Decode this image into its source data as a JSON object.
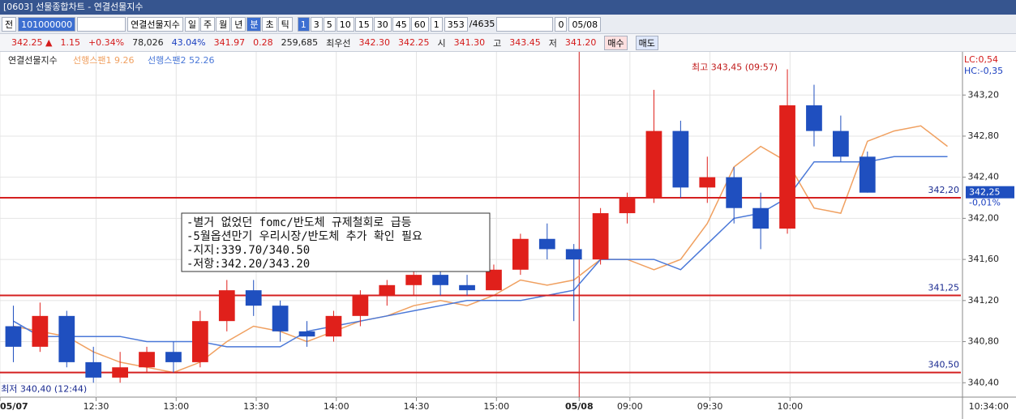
{
  "window": {
    "title": "[0603] 선물종합차트 - 연결선물지수"
  },
  "toolbar": {
    "first": "전",
    "code": "101000000",
    "symbol": "연결선물지수",
    "periods": [
      "일",
      "주",
      "월",
      "년",
      "분",
      "초",
      "틱"
    ],
    "intervals": [
      "1",
      "3",
      "5",
      "10",
      "15",
      "30",
      "45",
      "60"
    ],
    "count": "1",
    "position": "353",
    "total": "/4635",
    "check": "0",
    "date": "05/08"
  },
  "quote": {
    "price": "342.25 ▲",
    "change": "1.15",
    "rate": "+0.34%",
    "volume": "78,026",
    "ratio": "43.04%",
    "base": "341.97",
    "diff": "0.28",
    "open_interest": "259,685",
    "best_label": "최우선",
    "ask": "342.30",
    "bid": "342.25",
    "open_label": "시",
    "open": "341.30",
    "high_label": "고",
    "high": "343.45",
    "low_label": "저",
    "low": "341.20",
    "buy": "매수",
    "sell": "매도"
  },
  "chart_data": {
    "type": "candlestick",
    "label": "연결선물지수",
    "up_color": "#e0201b",
    "down_color": "#1f4fbf",
    "open": [
      340.95,
      340.75,
      341.05,
      340.6,
      340.45,
      340.55,
      340.7,
      340.6,
      341.0,
      341.3,
      341.15,
      340.9,
      340.85,
      341.05,
      341.25,
      341.35,
      341.45,
      341.35,
      341.3,
      341.5,
      341.8,
      341.7,
      341.6,
      342.05,
      342.2,
      342.85,
      342.3,
      342.4,
      342.1,
      341.9,
      343.1,
      342.85,
      342.6
    ],
    "high": [
      341.15,
      341.18,
      341.1,
      340.75,
      340.7,
      340.75,
      340.8,
      341.1,
      341.4,
      341.4,
      341.2,
      341.0,
      341.1,
      341.3,
      341.4,
      341.55,
      341.5,
      341.45,
      341.55,
      341.85,
      341.95,
      341.75,
      342.1,
      342.25,
      343.25,
      342.95,
      342.6,
      342.5,
      342.25,
      343.45,
      343.3,
      343.0,
      342.65
    ],
    "low": [
      340.6,
      340.7,
      340.55,
      340.4,
      340.4,
      340.5,
      340.5,
      340.55,
      340.9,
      341.05,
      340.8,
      340.75,
      340.8,
      340.95,
      341.15,
      341.25,
      341.25,
      341.25,
      341.3,
      341.45,
      341.6,
      341.0,
      341.55,
      341.95,
      342.15,
      342.2,
      342.15,
      341.95,
      341.7,
      341.85,
      342.7,
      342.55,
      342.25
    ],
    "close": [
      340.75,
      341.05,
      340.6,
      340.45,
      340.55,
      340.7,
      340.6,
      341.0,
      341.3,
      341.15,
      340.9,
      340.85,
      341.05,
      341.25,
      341.35,
      341.45,
      341.35,
      341.3,
      341.5,
      341.8,
      341.7,
      341.6,
      342.05,
      342.2,
      342.85,
      342.3,
      342.4,
      342.1,
      341.9,
      343.1,
      342.85,
      342.6,
      342.25
    ],
    "spans": [
      {
        "name": "선행스팬1 9.26",
        "color": "#f0a060",
        "values": [
          340.95,
          340.9,
          340.85,
          340.7,
          340.6,
          340.55,
          340.5,
          340.6,
          340.8,
          340.95,
          340.9,
          340.8,
          340.9,
          341.0,
          341.05,
          341.15,
          341.2,
          341.15,
          341.25,
          341.4,
          341.35,
          341.4,
          341.6,
          341.6,
          341.5,
          341.6,
          341.95,
          342.5,
          342.7,
          342.55,
          342.1,
          342.05,
          342.75,
          342.85,
          342.9,
          342.7
        ]
      },
      {
        "name": "선행스팬2 52.26",
        "color": "#4a78d8",
        "values": [
          341.0,
          340.85,
          340.85,
          340.85,
          340.85,
          340.8,
          340.8,
          340.8,
          340.75,
          340.75,
          340.75,
          340.9,
          340.95,
          341.0,
          341.05,
          341.1,
          341.15,
          341.2,
          341.2,
          341.2,
          341.25,
          341.3,
          341.6,
          341.6,
          341.6,
          341.5,
          341.75,
          342.0,
          342.05,
          342.2,
          342.55,
          342.55,
          342.55,
          342.6,
          342.6,
          342.6
        ]
      }
    ],
    "hlines": [
      {
        "value": 342.2,
        "label": "342,20"
      },
      {
        "value": 341.25,
        "label": "341,25"
      },
      {
        "value": 340.5,
        "label": "340,50"
      }
    ],
    "hline_color": "#d42020",
    "ylim": [
      340.26,
      343.62
    ],
    "yticks": [
      {
        "value": 340.4,
        "label": "340,40"
      },
      {
        "value": 340.8,
        "label": "340,80"
      },
      {
        "value": 341.2,
        "label": "341,20"
      },
      {
        "value": 341.6,
        "label": "341,60"
      },
      {
        "value": 342.0,
        "label": "342,00"
      },
      {
        "value": 342.4,
        "label": "342,40"
      },
      {
        "value": 342.8,
        "label": "342,80"
      },
      {
        "value": 343.2,
        "label": "343,20"
      }
    ],
    "xlim": [
      0,
      36
    ],
    "xticks": [
      {
        "value": 0,
        "label": "05/07"
      },
      {
        "value": 3.6,
        "label": "12:30"
      },
      {
        "value": 6.6,
        "label": "13:00"
      },
      {
        "value": 9.6,
        "label": "13:30"
      },
      {
        "value": 12.6,
        "label": "14:00"
      },
      {
        "value": 15.6,
        "label": "14:30"
      },
      {
        "value": 18.6,
        "label": "15:00"
      },
      {
        "value": 21.7,
        "label": "05/08"
      },
      {
        "value": 23.6,
        "label": "09:00"
      },
      {
        "value": 26.6,
        "label": "09:30"
      },
      {
        "value": 29.6,
        "label": "10:00"
      }
    ],
    "grid": true,
    "note": [
      "-별거 없었던 fomc/반도체 규제철회로 급등",
      "-5월옵션만기 우리시장/반도체 추가 확인 필요",
      "-지지:339.70/340.50",
      "-저항:342.20/343.20"
    ],
    "max_label": "최고 343,45 (09:57)",
    "min_label": "최저 340,40 (12:44)",
    "last": {
      "value": 342.25,
      "label": "342,25",
      "change": "-0,01%"
    },
    "lc": "LC:0,54",
    "hc": "HC:-0,35",
    "time": "10:34:00"
  }
}
